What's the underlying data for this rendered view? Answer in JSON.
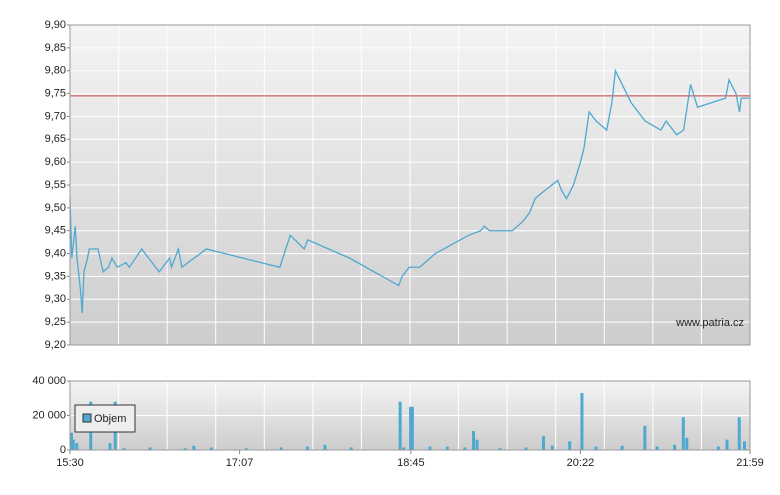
{
  "chart_data": [
    {
      "type": "line",
      "annotation": "www.patria.cz",
      "x": [
        "15:30",
        "15:31",
        "15:33",
        "15:34",
        "15:36",
        "15:37",
        "15:38",
        "15:40",
        "15:41",
        "15:46",
        "15:49",
        "15:52",
        "15:54",
        "15:57",
        "16:02",
        "16:04",
        "16:11",
        "16:21",
        "16:27",
        "16:28",
        "16:32",
        "16:34",
        "16:48",
        "17:30",
        "17:36",
        "17:44",
        "17:46",
        "18:10",
        "18:38",
        "18:40",
        "18:44",
        "18:50",
        "18:59",
        "19:18",
        "19:25",
        "19:27",
        "19:30",
        "19:43",
        "19:46",
        "19:49",
        "19:53",
        "19:56",
        "19:59",
        "20:09",
        "20:11",
        "20:14",
        "20:18",
        "20:22",
        "20:24",
        "20:27",
        "20:31",
        "20:37",
        "20:40",
        "20:42",
        "20:51",
        "20:59",
        "21:08",
        "21:11",
        "21:17",
        "21:21",
        "21:25",
        "21:29",
        "21:45",
        "21:47",
        "21:51",
        "21:53",
        "21:54",
        "21:59"
      ],
      "values": [
        9.52,
        9.39,
        9.46,
        9.39,
        9.32,
        9.27,
        9.36,
        9.39,
        9.41,
        9.41,
        9.36,
        9.37,
        9.39,
        9.37,
        9.38,
        9.37,
        9.41,
        9.36,
        9.39,
        9.37,
        9.41,
        9.37,
        9.41,
        9.37,
        9.44,
        9.41,
        9.43,
        9.39,
        9.33,
        9.35,
        9.37,
        9.37,
        9.4,
        9.44,
        9.45,
        9.46,
        9.45,
        9.45,
        9.46,
        9.47,
        9.49,
        9.52,
        9.53,
        9.56,
        9.54,
        9.52,
        9.55,
        9.6,
        9.63,
        9.71,
        9.69,
        9.67,
        9.73,
        9.8,
        9.73,
        9.69,
        9.67,
        9.69,
        9.66,
        9.67,
        9.77,
        9.72,
        9.74,
        9.78,
        9.75,
        9.71,
        9.74,
        9.74
      ],
      "color": "#4fa8d0",
      "reference_line": {
        "value": 9.745,
        "color": "#d04040"
      },
      "xlim": [
        "15:30",
        "21:59"
      ],
      "ylim": [
        9.2,
        9.9
      ],
      "yticks": [
        {
          "value": 9.2,
          "label": "9,20"
        },
        {
          "value": 9.25,
          "label": "9,25"
        },
        {
          "value": 9.3,
          "label": "9,30"
        },
        {
          "value": 9.35,
          "label": "9,35"
        },
        {
          "value": 9.4,
          "label": "9,40"
        },
        {
          "value": 9.45,
          "label": "9,45"
        },
        {
          "value": 9.5,
          "label": "9,50"
        },
        {
          "value": 9.55,
          "label": "9,55"
        },
        {
          "value": 9.6,
          "label": "9,60"
        },
        {
          "value": 9.65,
          "label": "9,65"
        },
        {
          "value": 9.7,
          "label": "9,70"
        },
        {
          "value": 9.75,
          "label": "9,75"
        },
        {
          "value": 9.8,
          "label": "9,80"
        },
        {
          "value": 9.85,
          "label": "9,85"
        },
        {
          "value": 9.9,
          "label": "9,90"
        }
      ],
      "grid": true
    },
    {
      "type": "bar",
      "x": [
        "15:30",
        "15:31",
        "15:33",
        "15:41",
        "15:52",
        "15:55",
        "16:00",
        "16:15",
        "16:35",
        "16:40",
        "16:50",
        "17:10",
        "17:30",
        "17:45",
        "17:55",
        "18:10",
        "18:38",
        "18:40",
        "18:44",
        "18:45",
        "18:55",
        "19:05",
        "19:15",
        "19:20",
        "19:22",
        "19:35",
        "19:50",
        "20:00",
        "20:05",
        "20:15",
        "20:22",
        "20:30",
        "20:45",
        "20:58",
        "21:05",
        "21:15",
        "21:20",
        "21:22",
        "21:40",
        "21:45",
        "21:52",
        "21:55"
      ],
      "series": [
        {
          "name": "Objem",
          "color": "#4fa8d0",
          "values": [
            10000,
            6000,
            4000,
            28000,
            4000,
            28000,
            1000,
            1500,
            1000,
            2500,
            1500,
            1000,
            1500,
            2000,
            3000,
            1500,
            28000,
            1500,
            25000,
            25000,
            2000,
            2000,
            1500,
            11000,
            6000,
            1000,
            1500,
            8000,
            2500,
            5000,
            33000,
            2000,
            2500,
            14000,
            2000,
            3000,
            19000,
            7000,
            2000,
            6000,
            19000,
            5000
          ]
        }
      ],
      "xlim": [
        "15:30",
        "21:59"
      ],
      "xticks": [
        "15:30",
        "17:07",
        "18:45",
        "20:22",
        "21:59"
      ],
      "ylim": [
        0,
        40000
      ],
      "yticks": [
        0,
        {
          "value": 20000,
          "label": "20 000"
        },
        {
          "value": 40000,
          "label": "40 000"
        }
      ],
      "grid": true
    }
  ]
}
